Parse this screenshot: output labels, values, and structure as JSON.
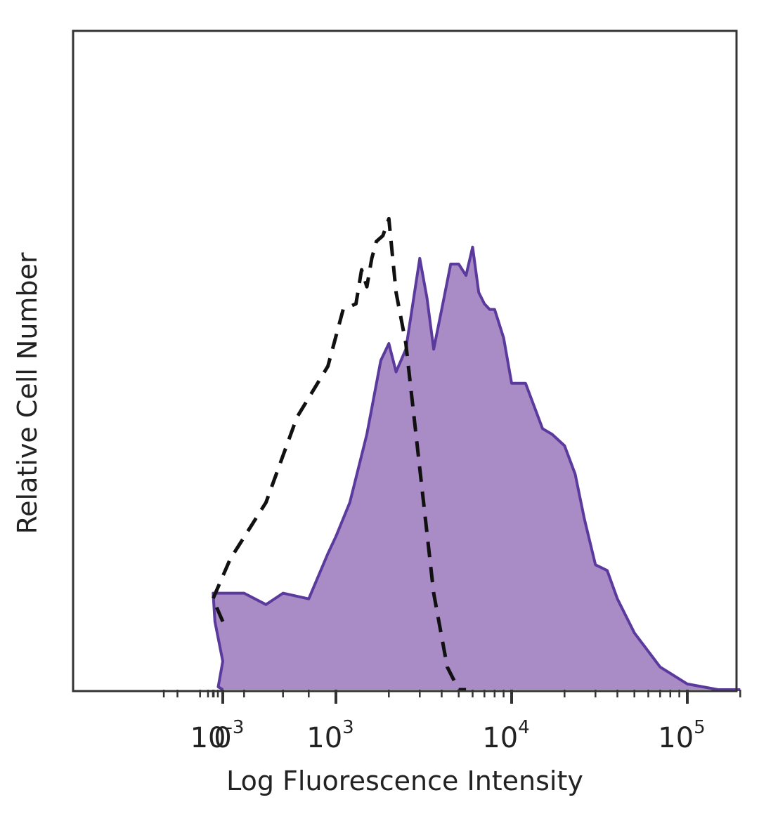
{
  "chart_data": {
    "type": "area",
    "xlabel": "Log Fluorescence Intensity",
    "ylabel": "Relative Cell Number",
    "x_scale": "biexponential",
    "ylim": [
      0,
      100
    ],
    "grid": false,
    "x_ticks": [
      {
        "base": "10",
        "exp": "-3"
      },
      {
        "base": "0",
        "exp": ""
      },
      {
        "base": "10",
        "exp": "3"
      },
      {
        "base": "10",
        "exp": "4"
      },
      {
        "base": "10",
        "exp": "5"
      }
    ],
    "series": [
      {
        "style": "filled",
        "color": "#5b3a9e",
        "fill": "#a98bc6",
        "x": [
          -0.001,
          -10,
          0,
          80,
          200,
          300,
          400,
          500,
          700,
          900,
          1000,
          1200,
          1500,
          1800,
          2000,
          2200,
          2500,
          3000,
          3300,
          3600,
          4000,
          4500,
          5000,
          5500,
          6000,
          6500,
          7000,
          7500,
          8000,
          9000,
          10000,
          12000,
          15000,
          17000,
          20000,
          23000,
          26000,
          30000,
          35000,
          40000,
          50000,
          70000,
          100000,
          150000,
          200000
        ],
        "y": [
          0,
          0.5,
          5,
          12,
          17,
          17,
          15,
          17,
          16,
          24,
          27,
          33,
          45,
          58,
          61,
          56,
          60,
          76,
          69,
          60,
          67,
          75,
          75,
          73,
          78,
          70,
          68,
          67,
          67,
          62,
          54,
          54,
          46,
          45,
          43,
          38,
          30,
          22,
          21,
          16,
          10,
          4,
          1,
          0,
          0
        ]
      },
      {
        "style": "dashed",
        "color": "#111111",
        "x": [
          0,
          100,
          250,
          400,
          600,
          900,
          1100,
          1300,
          1400,
          1500,
          1600,
          1700,
          1850,
          2000,
          2200,
          2500,
          3000,
          3600,
          4300,
          5000,
          5500
        ],
        "y": [
          12,
          16,
          23,
          33,
          48,
          57,
          67,
          68,
          74,
          71,
          76,
          79,
          80,
          83,
          70,
          61,
          39,
          17,
          4,
          0,
          0
        ]
      }
    ]
  }
}
